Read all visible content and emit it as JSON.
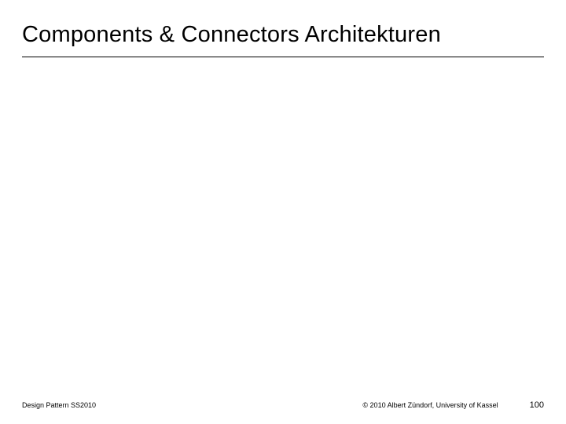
{
  "title": "Components & Connectors Architekturen",
  "footer": {
    "left": "Design Pattern SS2010",
    "copyright": "© 2010 Albert Zündorf, University of Kassel",
    "page": "100"
  },
  "colors": {
    "background": "#ffffff",
    "text": "#000000",
    "divider": "#000000"
  }
}
